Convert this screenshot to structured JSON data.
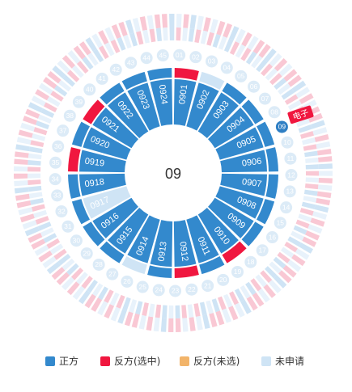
{
  "center_label": "09",
  "selected_outer": "09",
  "tag_label": "电子",
  "outer_numbers": [
    "01",
    "02",
    "03",
    "04",
    "05",
    "06",
    "07",
    "08",
    "09",
    "10",
    "11",
    "12",
    "13",
    "14",
    "15",
    "16",
    "17",
    "18",
    "19",
    "20",
    "21",
    "22",
    "23",
    "24",
    "25",
    "26",
    "27",
    "28",
    "29",
    "30",
    "31",
    "32",
    "33",
    "34",
    "35",
    "36",
    "37",
    "38",
    "39",
    "40",
    "41",
    "42",
    "43",
    "44",
    "45"
  ],
  "inner_cells": [
    "0901",
    "0902",
    "0903",
    "0904",
    "0905",
    "0906",
    "0907",
    "0908",
    "0909",
    "0910",
    "0911",
    "0912",
    "0913",
    "0914",
    "0915",
    "0916",
    "0917",
    "0918",
    "0919",
    "0920",
    "0921",
    "0922",
    "0923",
    "0924"
  ],
  "inner_cell_status": [
    "blue",
    "blue",
    "blue",
    "blue",
    "blue",
    "blue",
    "blue",
    "blue",
    "blue",
    "blue",
    "blue",
    "blue",
    "blue",
    "blue",
    "blue",
    "blue",
    "light",
    "blue",
    "blue",
    "blue",
    "blue",
    "blue",
    "blue",
    "blue"
  ],
  "thin_ring_status": [
    "red",
    "light",
    "blue",
    "blue",
    "blue",
    "blue",
    "blue",
    "blue",
    "blue",
    "red",
    "blue",
    "red",
    "blue",
    "light",
    "blue",
    "blue",
    "blue",
    "blue",
    "red",
    "blue",
    "red",
    "blue",
    "blue",
    "blue"
  ],
  "colors": {
    "zheng": "#3389cd",
    "fan_selected": "#f0173f",
    "fan_unselected": "#f2b46a",
    "unapplied": "#cfe4f5",
    "pink": "#f9c8d4",
    "pale": "#e8f2fb",
    "badge": "#2f7fc4"
  },
  "legend": [
    {
      "label": "正方",
      "color": "#3389cd"
    },
    {
      "label": "反方(选中)",
      "color": "#f0173f"
    },
    {
      "label": "反方(未选)",
      "color": "#f2b46a"
    },
    {
      "label": "未申请",
      "color": "#cfe4f5"
    }
  ]
}
